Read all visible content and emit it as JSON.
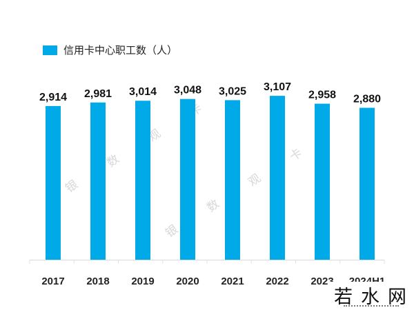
{
  "legend": {
    "label": "信用卡中心职工数（人）",
    "color": "#00A9E8"
  },
  "watermark": {
    "chars": [
      "银",
      "数",
      "观",
      "卡"
    ]
  },
  "logo": {
    "text": "若水网"
  },
  "chart_data": {
    "type": "bar",
    "title": "",
    "xlabel": "",
    "ylabel": "",
    "ylim": [
      0,
      3200
    ],
    "grid": false,
    "legend_position": "top-left",
    "categories": [
      "2017",
      "2018",
      "2019",
      "2020",
      "2021",
      "2022",
      "2023",
      "2024H1"
    ],
    "series": [
      {
        "name": "信用卡中心职工数（人）",
        "color": "#00A9E8",
        "values": [
          2914,
          2981,
          3014,
          3048,
          3025,
          3107,
          2958,
          2880
        ],
        "labels": [
          "2,914",
          "2,981",
          "3,014",
          "3,048",
          "3,025",
          "3,107",
          "2,958",
          "2,880"
        ]
      }
    ]
  }
}
